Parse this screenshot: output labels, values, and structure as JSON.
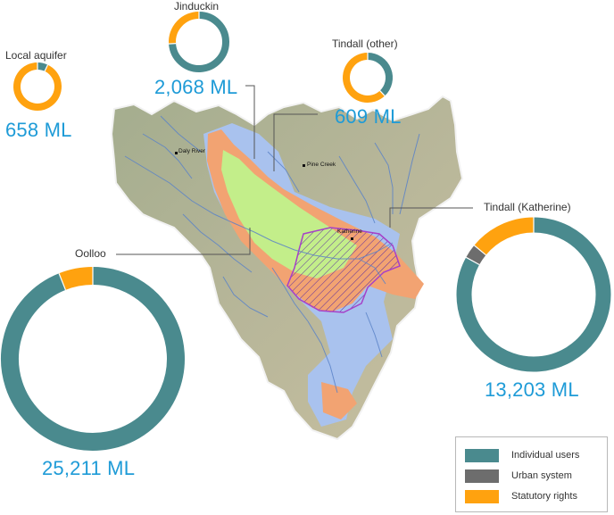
{
  "colors": {
    "individual_users": "#4a8a8e",
    "urban_system": "#6d6d6d",
    "statutory_rights": "#ffa20f",
    "volume_text": "#1e9bd7"
  },
  "map": {
    "towns": {
      "daly_river": "Daly River",
      "pine_creek": "Pine Creek",
      "katherine": "Katherine"
    }
  },
  "areas": {
    "local_aquifer": {
      "label": "Local aquifer",
      "volume": "658 ML",
      "shares": [
        0.07,
        0.0,
        0.93
      ]
    },
    "jinduckin": {
      "label": "Jinduckin",
      "volume": "2,068 ML",
      "shares": [
        0.74,
        0.0,
        0.26
      ]
    },
    "tindall_other": {
      "label": "Tindall (other)",
      "volume": "609 ML",
      "shares": [
        0.38,
        0.0,
        0.62
      ]
    },
    "tindall_katherine": {
      "label": "Tindall (Katherine)",
      "volume": "13,203 ML",
      "shares": [
        0.83,
        0.03,
        0.14
      ]
    },
    "oolloo": {
      "label": "Oolloo",
      "volume": "25,211 ML",
      "shares": [
        0.94,
        0.0,
        0.06
      ]
    }
  },
  "legend": {
    "items": [
      {
        "label": "Individual users",
        "color": "#4a8a8e"
      },
      {
        "label": "Urban system",
        "color": "#6d6d6d"
      },
      {
        "label": "Statutory rights",
        "color": "#ffa20f"
      }
    ]
  }
}
